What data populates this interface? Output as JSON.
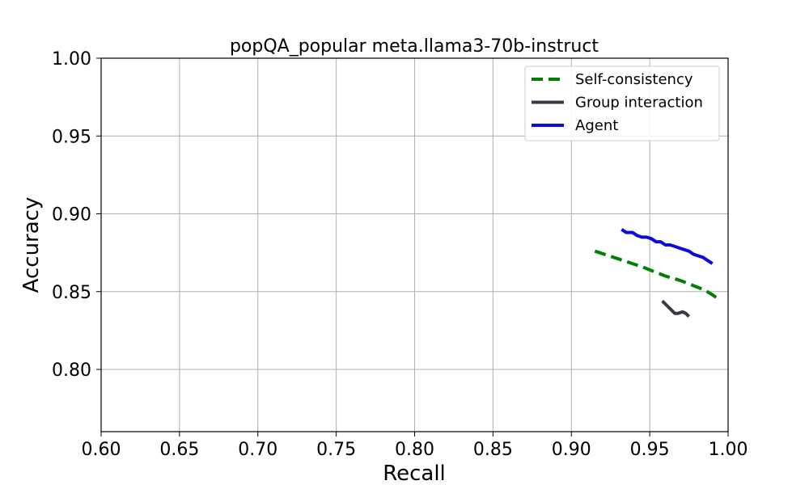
{
  "chart_data": {
    "type": "line",
    "title": "popQA_popular meta.llama3-70b-instruct",
    "xlabel": "Recall",
    "ylabel": "Accuracy",
    "xlim": [
      0.6,
      1.0
    ],
    "ylim": [
      0.76,
      1.0
    ],
    "xticks": [
      "0.60",
      "0.65",
      "0.70",
      "0.75",
      "0.80",
      "0.85",
      "0.90",
      "0.95",
      "1.00"
    ],
    "yticks": [
      "0.80",
      "0.85",
      "0.90",
      "0.95",
      "1.00"
    ],
    "grid": true,
    "legend_position": "top-right",
    "series": [
      {
        "name": "Self-consistency",
        "color": "#008000",
        "style": "dashed",
        "x": [
          0.915,
          0.93,
          0.945,
          0.96,
          0.97,
          0.98,
          0.985,
          0.99,
          0.994
        ],
        "y": [
          0.876,
          0.871,
          0.866,
          0.86,
          0.857,
          0.853,
          0.851,
          0.848,
          0.845
        ]
      },
      {
        "name": "Group interaction",
        "color": "#3a3a44",
        "style": "solid",
        "x": [
          0.958,
          0.962,
          0.966,
          0.968,
          0.971,
          0.973,
          0.975
        ],
        "y": [
          0.844,
          0.84,
          0.836,
          0.836,
          0.837,
          0.836,
          0.834
        ]
      },
      {
        "name": "Agent",
        "color": "#0b0bdf",
        "style": "solid",
        "x": [
          0.932,
          0.935,
          0.939,
          0.942,
          0.945,
          0.948,
          0.951,
          0.954,
          0.957,
          0.96,
          0.963,
          0.966,
          0.969,
          0.972,
          0.975,
          0.978,
          0.981,
          0.984,
          0.987,
          0.99
        ],
        "y": [
          0.89,
          0.888,
          0.888,
          0.886,
          0.885,
          0.885,
          0.884,
          0.882,
          0.882,
          0.88,
          0.88,
          0.879,
          0.878,
          0.877,
          0.876,
          0.874,
          0.873,
          0.872,
          0.87,
          0.868
        ]
      }
    ]
  }
}
